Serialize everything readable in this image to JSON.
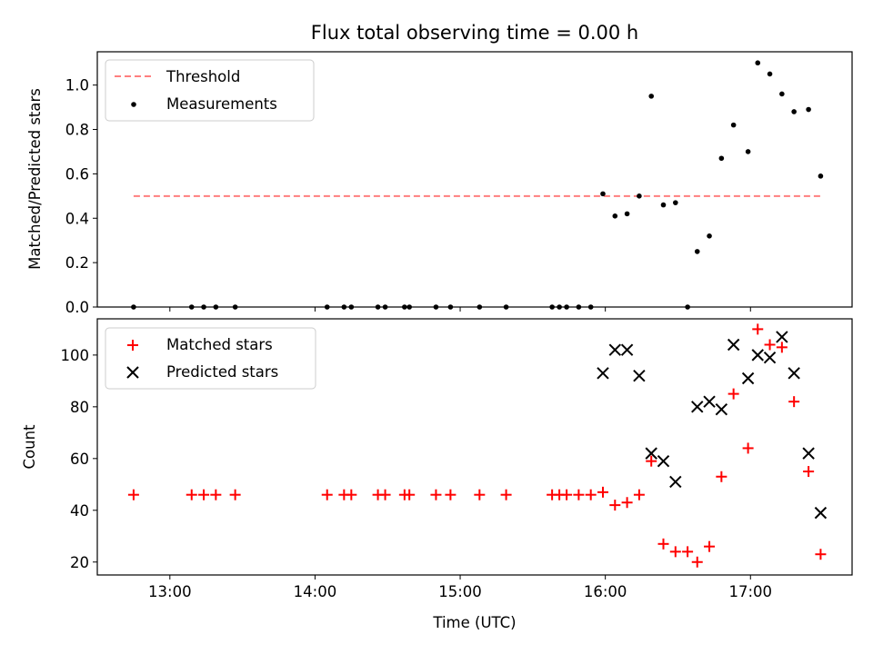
{
  "title": "Flux total observing time = 0.00 h",
  "xlabel": "Time (UTC)",
  "x_tick_labels": [
    "13:00",
    "14:00",
    "15:00",
    "16:00",
    "17:00"
  ],
  "chart_data": [
    {
      "type": "scatter",
      "ylabel": "Matched/Predicted stars",
      "ylim": [
        0,
        1.15
      ],
      "y_ticks": [
        "0.0",
        "0.2",
        "0.4",
        "0.6",
        "0.8",
        "1.0"
      ],
      "xlim": [
        "12:30",
        "17:42"
      ],
      "legend_position": "top-left",
      "threshold": {
        "name": "Threshold",
        "value": 0.5,
        "x_range": [
          "12:45",
          "17:29"
        ],
        "color": "#ff7f7f",
        "style": "dashed"
      },
      "series": [
        {
          "name": "Measurements",
          "color": "#000000",
          "marker": "dot",
          "x": [
            "12:45",
            "13:09",
            "13:14",
            "13:19",
            "13:27",
            "14:05",
            "14:12",
            "14:15",
            "14:26",
            "14:29",
            "14:37",
            "14:39",
            "14:50",
            "14:56",
            "15:08",
            "15:19",
            "15:38",
            "15:41",
            "15:44",
            "15:49",
            "15:54",
            "15:59",
            "16:04",
            "16:09",
            "16:14",
            "16:19",
            "16:24",
            "16:29",
            "16:34",
            "16:38",
            "16:43",
            "16:48",
            "16:53",
            "16:59",
            "17:03",
            "17:08",
            "17:13",
            "17:18",
            "17:24",
            "17:29"
          ],
          "y": [
            0,
            0,
            0,
            0,
            0,
            0,
            0,
            0,
            0,
            0,
            0,
            0,
            0,
            0,
            0,
            0,
            0,
            0,
            0,
            0,
            0,
            0.51,
            0.41,
            0.42,
            0.5,
            0.95,
            0.46,
            0.47,
            0,
            0.25,
            0.32,
            0.67,
            0.82,
            0.7,
            1.1,
            1.05,
            0.96,
            0.88,
            0.89,
            0.59
          ]
        }
      ]
    },
    {
      "type": "scatter",
      "ylabel": "Count",
      "ylim": [
        15,
        114
      ],
      "y_ticks": [
        "20",
        "40",
        "60",
        "80",
        "100"
      ],
      "xlim": [
        "12:30",
        "17:42"
      ],
      "legend_position": "top-left",
      "series": [
        {
          "name": "Matched stars",
          "color": "#ff0000",
          "marker": "plus",
          "x": [
            "12:45",
            "13:09",
            "13:14",
            "13:19",
            "13:27",
            "14:05",
            "14:12",
            "14:15",
            "14:26",
            "14:29",
            "14:37",
            "14:39",
            "14:50",
            "14:56",
            "15:08",
            "15:19",
            "15:38",
            "15:41",
            "15:44",
            "15:49",
            "15:54",
            "15:59",
            "16:04",
            "16:09",
            "16:14",
            "16:19",
            "16:24",
            "16:29",
            "16:34",
            "16:38",
            "16:43",
            "16:48",
            "16:53",
            "16:59",
            "17:03",
            "17:08",
            "17:13",
            "17:18",
            "17:24",
            "17:29"
          ],
          "y": [
            46,
            46,
            46,
            46,
            46,
            46,
            46,
            46,
            46,
            46,
            46,
            46,
            46,
            46,
            46,
            46,
            46,
            46,
            46,
            46,
            46,
            47,
            42,
            43,
            46,
            59,
            27,
            24,
            24,
            20,
            26,
            53,
            85,
            64,
            110,
            104,
            103,
            82,
            55,
            23
          ]
        },
        {
          "name": "Predicted stars",
          "color": "#000000",
          "marker": "x",
          "x": [
            "15:59",
            "16:04",
            "16:09",
            "16:14",
            "16:19",
            "16:24",
            "16:29",
            "16:38",
            "16:43",
            "16:48",
            "16:53",
            "16:59",
            "17:03",
            "17:08",
            "17:13",
            "17:18",
            "17:24",
            "17:29"
          ],
          "y": [
            93,
            102,
            102,
            92,
            62,
            59,
            51,
            80,
            82,
            79,
            104,
            91,
            100,
            99,
            107,
            93,
            62,
            39
          ]
        }
      ]
    }
  ]
}
